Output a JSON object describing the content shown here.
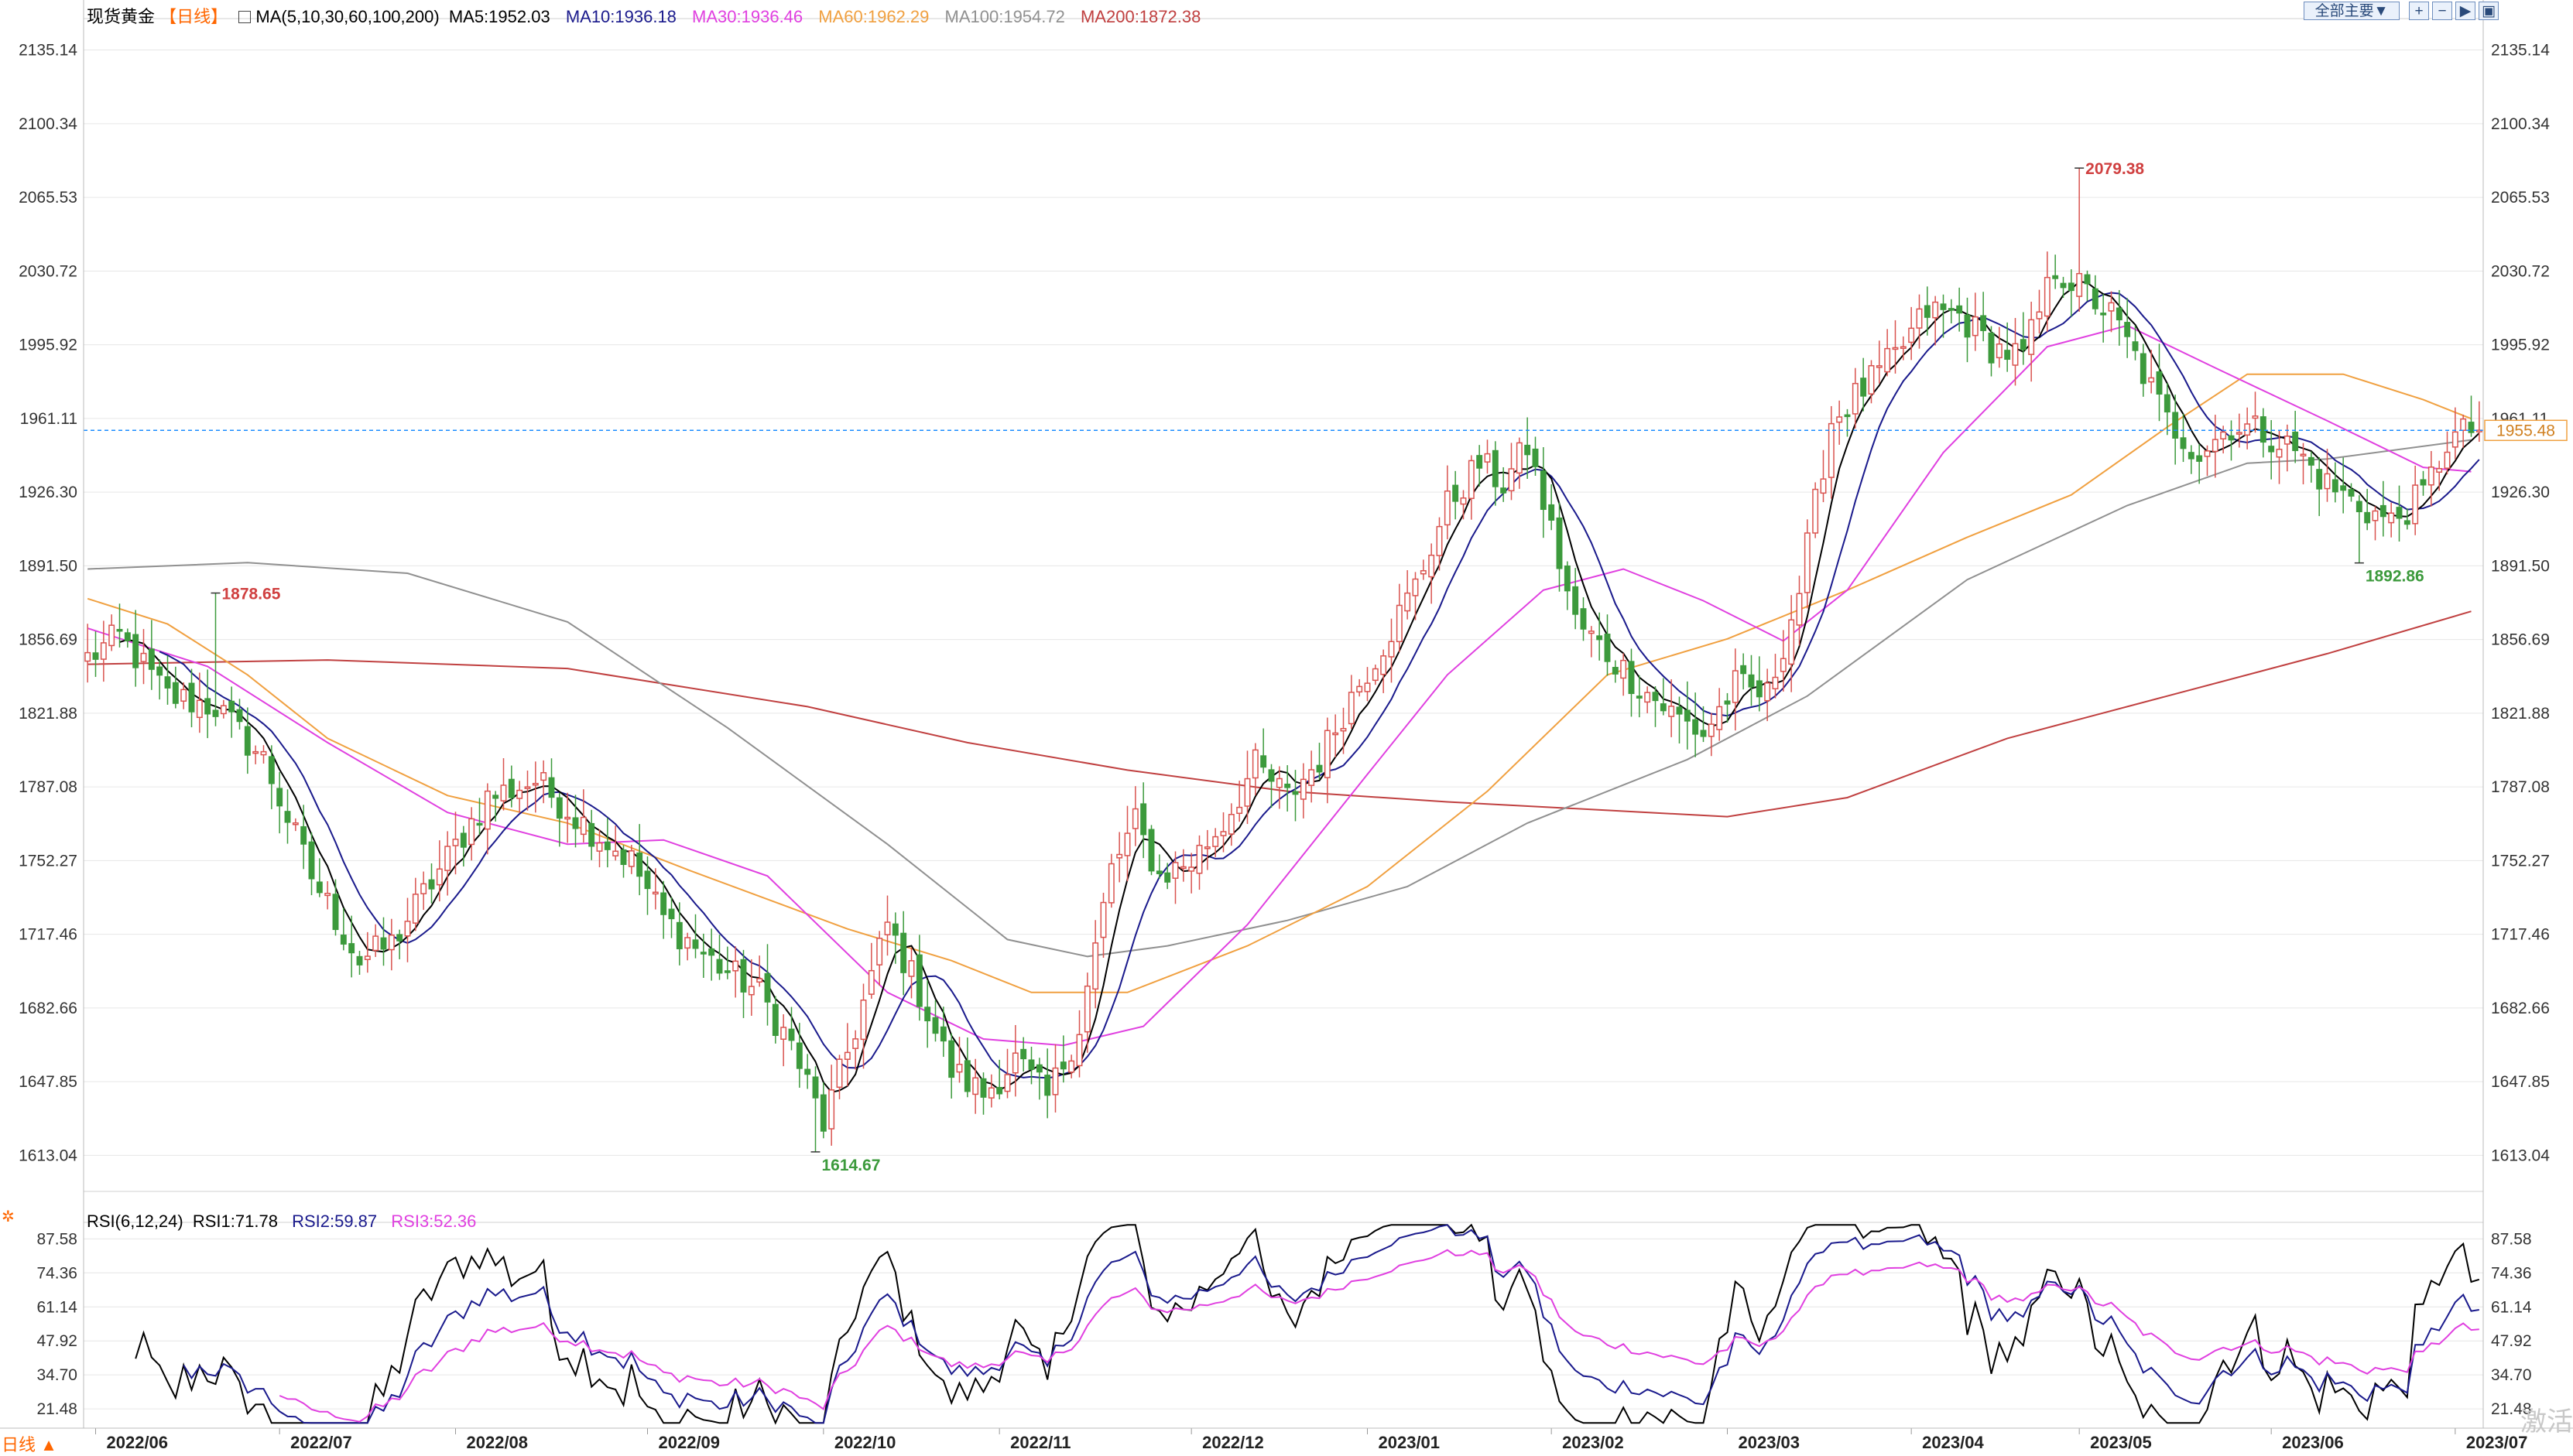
{
  "header": {
    "symbol": "现货黄金",
    "period": "【日线】",
    "ma_label": "MA(5,10,30,60,100,200)",
    "ma5": "MA5:1952.03",
    "ma10": "MA10:1936.18",
    "ma30": "MA30:1936.46",
    "ma60": "MA60:1962.29",
    "ma100": "MA100:1954.72",
    "ma200": "MA200:1872.38",
    "toolbar_label": "全部主要▼"
  },
  "rsi_header": {
    "label": "RSI(6,12,24)",
    "rsi1": "RSI1:71.78",
    "rsi2": "RSI2:59.87",
    "rsi3": "RSI3:52.36"
  },
  "period_badge": "日线 ▲",
  "watermark": "激活",
  "colors": {
    "up": "#d9534f",
    "down": "#3c9a3c",
    "ma5": "#000000",
    "ma10": "#1a1a8c",
    "ma30": "#e040e0",
    "ma60": "#f0a040",
    "ma100": "#909090",
    "ma200": "#c04040",
    "current": "#1a8cff",
    "grid": "#e6e6e6"
  },
  "chart_data": {
    "type": "candlestick",
    "title": "现货黄金【日线】",
    "price_axis": {
      "ticks": [
        "2135.14",
        "2100.34",
        "2065.53",
        "2030.72",
        "1995.92",
        "1961.11",
        "1926.30",
        "1891.50",
        "1856.69",
        "1821.88",
        "1787.08",
        "1752.27",
        "1717.46",
        "1682.66",
        "1647.85",
        "1613.04"
      ],
      "ylim": [
        1596,
        2150
      ]
    },
    "time_axis": {
      "labels": [
        "2022/06",
        "2022/07",
        "2022/08",
        "2022/09",
        "2022/10",
        "2022/11",
        "2022/12",
        "2023/01",
        "2023/02",
        "2023/03",
        "2023/04",
        "2023/05",
        "2023/06",
        "2023/07"
      ],
      "label_index": [
        1,
        24,
        46,
        70,
        92,
        114,
        138,
        160,
        183,
        205,
        228,
        249,
        273,
        296
      ]
    },
    "close_anchors": [
      [
        0,
        1848
      ],
      [
        4,
        1858
      ],
      [
        10,
        1830
      ],
      [
        16,
        1825
      ],
      [
        22,
        1800
      ],
      [
        28,
        1745
      ],
      [
        34,
        1705
      ],
      [
        38,
        1713
      ],
      [
        43,
        1742
      ],
      [
        50,
        1782
      ],
      [
        56,
        1790
      ],
      [
        62,
        1770
      ],
      [
        68,
        1752
      ],
      [
        72,
        1725
      ],
      [
        78,
        1705
      ],
      [
        84,
        1690
      ],
      [
        88,
        1665
      ],
      [
        92,
        1628
      ],
      [
        96,
        1673
      ],
      [
        100,
        1722
      ],
      [
        104,
        1690
      ],
      [
        108,
        1653
      ],
      [
        112,
        1642
      ],
      [
        116,
        1658
      ],
      [
        120,
        1640
      ],
      [
        124,
        1674
      ],
      [
        128,
        1748
      ],
      [
        131,
        1770
      ],
      [
        134,
        1745
      ],
      [
        138,
        1752
      ],
      [
        142,
        1770
      ],
      [
        146,
        1797
      ],
      [
        150,
        1782
      ],
      [
        154,
        1800
      ],
      [
        158,
        1830
      ],
      [
        162,
        1855
      ],
      [
        166,
        1882
      ],
      [
        170,
        1920
      ],
      [
        174,
        1940
      ],
      [
        177,
        1930
      ],
      [
        180,
        1948
      ],
      [
        183,
        1908
      ],
      [
        186,
        1865
      ],
      [
        190,
        1850
      ],
      [
        194,
        1835
      ],
      [
        198,
        1822
      ],
      [
        202,
        1812
      ],
      [
        206,
        1835
      ],
      [
        210,
        1830
      ],
      [
        214,
        1880
      ],
      [
        218,
        1960
      ],
      [
        222,
        1975
      ],
      [
        226,
        1990
      ],
      [
        230,
        2012
      ],
      [
        234,
        2010
      ],
      [
        238,
        1995
      ],
      [
        242,
        1990
      ],
      [
        246,
        2032
      ],
      [
        250,
        2020
      ],
      [
        253,
        2010
      ],
      [
        256,
        1990
      ],
      [
        260,
        1960
      ],
      [
        264,
        1945
      ],
      [
        268,
        1958
      ],
      [
        272,
        1955
      ],
      [
        276,
        1946
      ],
      [
        280,
        1930
      ],
      [
        284,
        1920
      ],
      [
        288,
        1912
      ],
      [
        292,
        1925
      ],
      [
        295,
        1950
      ],
      [
        298,
        1956
      ]
    ],
    "extremes": [
      {
        "label": "1878.65",
        "index": 16,
        "value": 1878.65,
        "type": "high"
      },
      {
        "label": "1614.67",
        "index": 91,
        "value": 1614.67,
        "type": "low"
      },
      {
        "label": "2079.38",
        "index": 249,
        "value": 2079.38,
        "type": "high"
      },
      {
        "label": "1892.86",
        "index": 284,
        "value": 1892.86,
        "type": "low"
      }
    ],
    "last_price": "1955.48",
    "series": [
      {
        "name": "MA5",
        "period": 5,
        "value": 1952.03
      },
      {
        "name": "MA10",
        "period": 10,
        "value": 1936.18
      },
      {
        "name": "MA30",
        "period": 30,
        "value": 1936.46
      },
      {
        "name": "MA60",
        "period": 60,
        "value": 1962.29
      },
      {
        "name": "MA100",
        "period": 100,
        "value": 1954.72
      },
      {
        "name": "MA200",
        "period": 200,
        "value": 1872.38
      }
    ],
    "ma_curves": [
      {
        "name": "MA200",
        "points": [
          [
            0,
            1845
          ],
          [
            30,
            1847
          ],
          [
            60,
            1843
          ],
          [
            90,
            1825
          ],
          [
            110,
            1808
          ],
          [
            130,
            1795
          ],
          [
            150,
            1785
          ],
          [
            170,
            1780
          ],
          [
            190,
            1776
          ],
          [
            205,
            1773
          ],
          [
            220,
            1782
          ],
          [
            240,
            1810
          ],
          [
            260,
            1830
          ],
          [
            280,
            1850
          ],
          [
            298,
            1870
          ]
        ]
      },
      {
        "name": "MA100",
        "points": [
          [
            0,
            1890
          ],
          [
            20,
            1893
          ],
          [
            40,
            1888
          ],
          [
            60,
            1865
          ],
          [
            80,
            1815
          ],
          [
            100,
            1760
          ],
          [
            115,
            1715
          ],
          [
            125,
            1707
          ],
          [
            135,
            1712
          ],
          [
            150,
            1724
          ],
          [
            165,
            1740
          ],
          [
            180,
            1770
          ],
          [
            200,
            1800
          ],
          [
            215,
            1830
          ],
          [
            235,
            1885
          ],
          [
            255,
            1920
          ],
          [
            270,
            1940
          ],
          [
            280,
            1942
          ],
          [
            298,
            1951
          ]
        ]
      },
      {
        "name": "MA60",
        "points": [
          [
            0,
            1876
          ],
          [
            10,
            1864
          ],
          [
            20,
            1840
          ],
          [
            30,
            1810
          ],
          [
            45,
            1783
          ],
          [
            60,
            1770
          ],
          [
            75,
            1748
          ],
          [
            95,
            1720
          ],
          [
            108,
            1705
          ],
          [
            118,
            1690
          ],
          [
            130,
            1690
          ],
          [
            145,
            1712
          ],
          [
            160,
            1740
          ],
          [
            175,
            1785
          ],
          [
            190,
            1840
          ],
          [
            205,
            1857
          ],
          [
            220,
            1880
          ],
          [
            235,
            1905
          ],
          [
            248,
            1925
          ],
          [
            260,
            1957
          ],
          [
            270,
            1982
          ],
          [
            282,
            1982
          ],
          [
            292,
            1970
          ],
          [
            298,
            1961
          ]
        ]
      },
      {
        "name": "MA30",
        "points": [
          [
            0,
            1862
          ],
          [
            15,
            1844
          ],
          [
            30,
            1808
          ],
          [
            45,
            1775
          ],
          [
            60,
            1760
          ],
          [
            72,
            1762
          ],
          [
            85,
            1745
          ],
          [
            100,
            1690
          ],
          [
            112,
            1668
          ],
          [
            122,
            1665
          ],
          [
            132,
            1674
          ],
          [
            145,
            1722
          ],
          [
            160,
            1793
          ],
          [
            170,
            1840
          ],
          [
            182,
            1880
          ],
          [
            192,
            1890
          ],
          [
            202,
            1875
          ],
          [
            212,
            1856
          ],
          [
            220,
            1880
          ],
          [
            232,
            1945
          ],
          [
            245,
            1995
          ],
          [
            255,
            2005
          ],
          [
            266,
            1985
          ],
          [
            280,
            1960
          ],
          [
            292,
            1938
          ],
          [
            298,
            1936
          ]
        ]
      }
    ],
    "rsi": {
      "axis_ticks": [
        "87.58",
        "74.36",
        "61.14",
        "47.92",
        "34.70",
        "21.48"
      ],
      "ylim": [
        14,
        94
      ],
      "series": [
        {
          "name": "RSI1",
          "period": 6,
          "value": 71.78
        },
        {
          "name": "RSI2",
          "period": 12,
          "value": 59.87
        },
        {
          "name": "RSI3",
          "period": 24,
          "value": 52.36
        }
      ]
    }
  }
}
